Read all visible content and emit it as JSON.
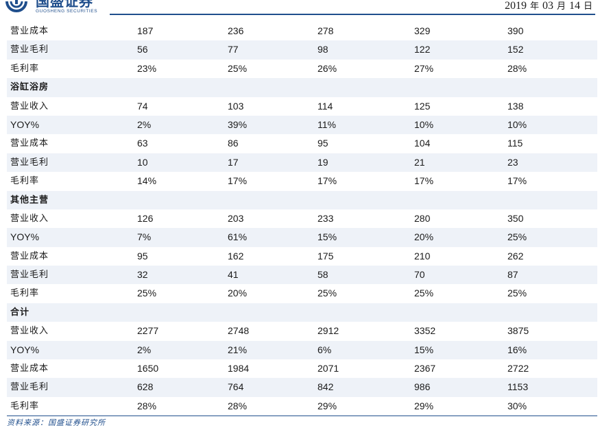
{
  "header": {
    "logo_cn": "国盛证券",
    "logo_en": "GUOSHENG SECURITIES",
    "date_year": "2019",
    "date_year_unit": "年",
    "date_month": "03",
    "date_month_unit": "月",
    "date_day": "14",
    "date_day_unit": "日"
  },
  "table": {
    "rows": [
      {
        "label": "营业成本",
        "values": [
          "187",
          "236",
          "278",
          "329",
          "390"
        ],
        "section": false,
        "shaded": false
      },
      {
        "label": "营业毛利",
        "values": [
          "56",
          "77",
          "98",
          "122",
          "152"
        ],
        "section": false,
        "shaded": true
      },
      {
        "label": "毛利率",
        "values": [
          "23%",
          "25%",
          "26%",
          "27%",
          "28%"
        ],
        "section": false,
        "shaded": false
      },
      {
        "label": "浴缸浴房",
        "values": [
          "",
          "",
          "",
          "",
          ""
        ],
        "section": true,
        "shaded": true
      },
      {
        "label": "营业收入",
        "values": [
          "74",
          "103",
          "114",
          "125",
          "138"
        ],
        "section": false,
        "shaded": false
      },
      {
        "label": "YOY%",
        "values": [
          "2%",
          "39%",
          "11%",
          "10%",
          "10%"
        ],
        "section": false,
        "shaded": true
      },
      {
        "label": "营业成本",
        "values": [
          "63",
          "86",
          "95",
          "104",
          "115"
        ],
        "section": false,
        "shaded": false
      },
      {
        "label": "营业毛利",
        "values": [
          "10",
          "17",
          "19",
          "21",
          "23"
        ],
        "section": false,
        "shaded": true
      },
      {
        "label": "毛利率",
        "values": [
          "14%",
          "17%",
          "17%",
          "17%",
          "17%"
        ],
        "section": false,
        "shaded": false
      },
      {
        "label": "其他主营",
        "values": [
          "",
          "",
          "",
          "",
          ""
        ],
        "section": true,
        "shaded": true
      },
      {
        "label": "营业收入",
        "values": [
          "126",
          "203",
          "233",
          "280",
          "350"
        ],
        "section": false,
        "shaded": false
      },
      {
        "label": "YOY%",
        "values": [
          "7%",
          "61%",
          "15%",
          "20%",
          "25%"
        ],
        "section": false,
        "shaded": true
      },
      {
        "label": "营业成本",
        "values": [
          "95",
          "162",
          "175",
          "210",
          "262"
        ],
        "section": false,
        "shaded": false
      },
      {
        "label": "营业毛利",
        "values": [
          "32",
          "41",
          "58",
          "70",
          "87"
        ],
        "section": false,
        "shaded": true
      },
      {
        "label": "毛利率",
        "values": [
          "25%",
          "20%",
          "25%",
          "25%",
          "25%"
        ],
        "section": false,
        "shaded": false
      },
      {
        "label": "合计",
        "values": [
          "",
          "",
          "",
          "",
          ""
        ],
        "section": true,
        "shaded": true
      },
      {
        "label": "营业收入",
        "values": [
          "2277",
          "2748",
          "2912",
          "3352",
          "3875"
        ],
        "section": false,
        "shaded": false
      },
      {
        "label": "YOY%",
        "values": [
          "2%",
          "21%",
          "6%",
          "15%",
          "16%"
        ],
        "section": false,
        "shaded": true
      },
      {
        "label": "营业成本",
        "values": [
          "1650",
          "1984",
          "2071",
          "2367",
          "2722"
        ],
        "section": false,
        "shaded": false
      },
      {
        "label": "营业毛利",
        "values": [
          "628",
          "764",
          "842",
          "986",
          "1153"
        ],
        "section": false,
        "shaded": true
      },
      {
        "label": "毛利率",
        "values": [
          "28%",
          "28%",
          "29%",
          "29%",
          "30%"
        ],
        "section": false,
        "shaded": false
      }
    ]
  },
  "footer": {
    "source": "资料来源：国盛证券研究所"
  },
  "colors": {
    "brand": "#1f4e8c",
    "row_shade": "#eef2f8"
  }
}
